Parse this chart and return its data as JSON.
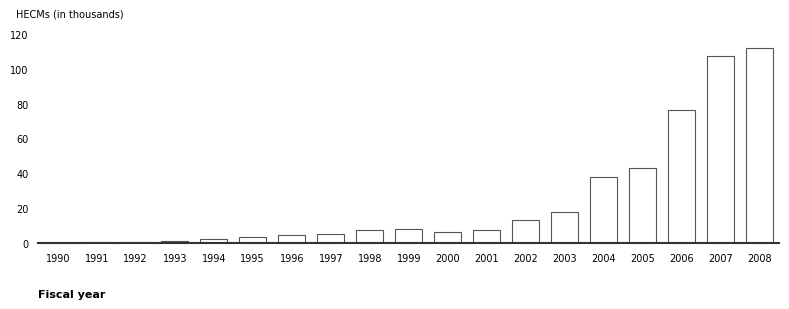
{
  "years": [
    1990,
    1991,
    1992,
    1993,
    1994,
    1995,
    1996,
    1997,
    1998,
    1999,
    2000,
    2001,
    2002,
    2003,
    2004,
    2005,
    2006,
    2007,
    2008
  ],
  "values": [
    157,
    389,
    352,
    1156,
    2191,
    3388,
    4495,
    5209,
    7781,
    7954,
    6637,
    7781,
    13049,
    18084,
    37829,
    43131,
    76351,
    107367,
    112154
  ],
  "ylabel": "HECMs (in thousands)",
  "xlabel": "Fiscal year",
  "ylim": [
    0,
    120000
  ],
  "yticks": [
    0,
    20000,
    40000,
    60000,
    80000,
    100000,
    120000
  ],
  "ytick_labels": [
    "0",
    "20",
    "40",
    "60",
    "80",
    "100",
    "120"
  ],
  "bar_color": "#ffffff",
  "bar_edgecolor": "#555555",
  "background_color": "#ffffff",
  "figure_width": 7.72,
  "figure_height": 3.07,
  "dpi": 100
}
